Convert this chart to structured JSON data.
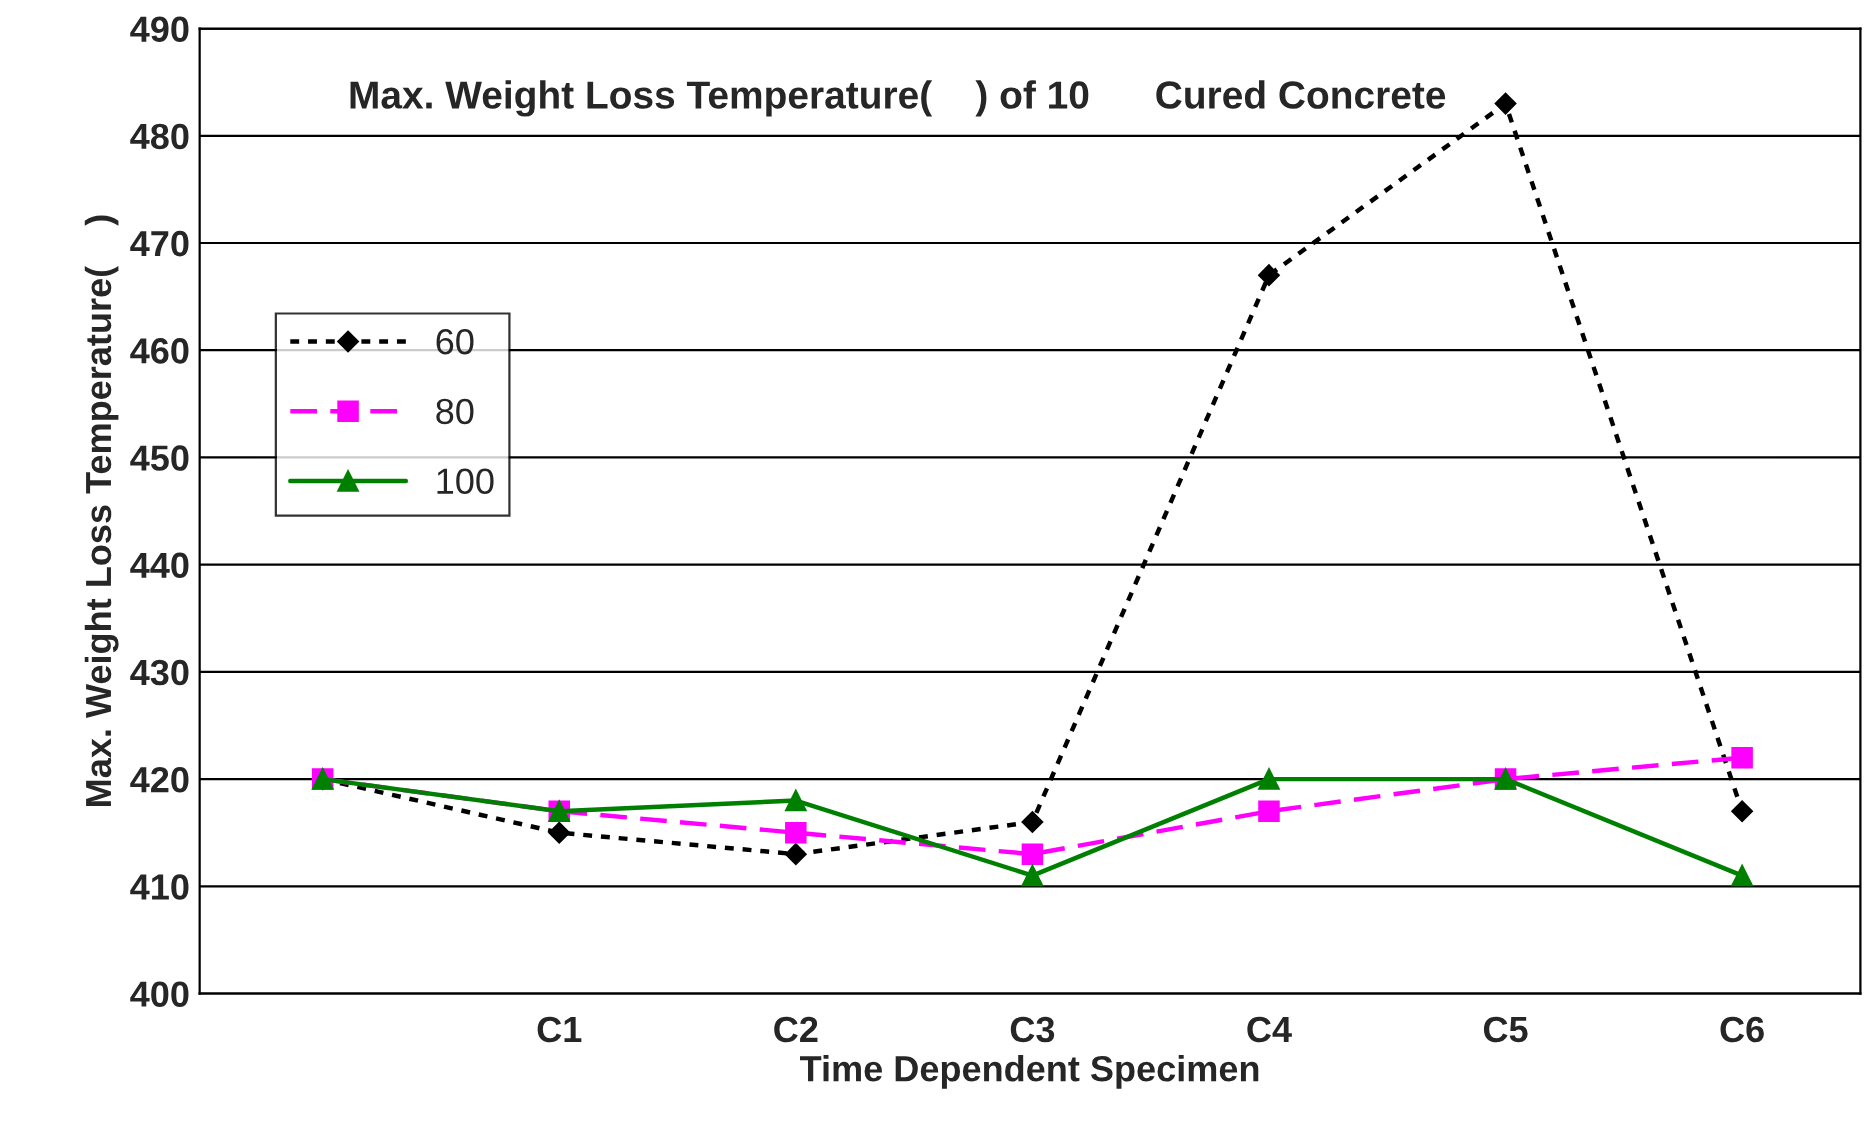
{
  "chart_data": {
    "type": "line",
    "title": "Max. Weight Loss Temperature(    ) of 10      Cured Concrete",
    "xlabel": "Time Dependent Specimen",
    "ylabel": "Max. Weight Loss Temperature(    )",
    "categories": [
      null,
      "C1",
      "C2",
      "C3",
      "C4",
      "C5",
      "C6"
    ],
    "series": [
      {
        "name": "60",
        "color": "#000000",
        "marker": "diamond",
        "line_style": "dotted",
        "values": [
          420,
          415,
          413,
          416,
          467,
          483,
          417
        ]
      },
      {
        "name": "80",
        "color": "#ff00ff",
        "marker": "square",
        "line_style": "dashed",
        "values": [
          420,
          417,
          415,
          413,
          417,
          420,
          422
        ]
      },
      {
        "name": "100",
        "color": "#008000",
        "marker": "triangle",
        "line_style": "solid",
        "values": [
          420,
          417,
          418,
          411,
          420,
          420,
          411
        ]
      }
    ],
    "ylim": [
      400,
      490
    ],
    "yticks": [
      400,
      410,
      420,
      430,
      440,
      450,
      460,
      470,
      480,
      490
    ],
    "grid": "y",
    "legend": "left"
  }
}
